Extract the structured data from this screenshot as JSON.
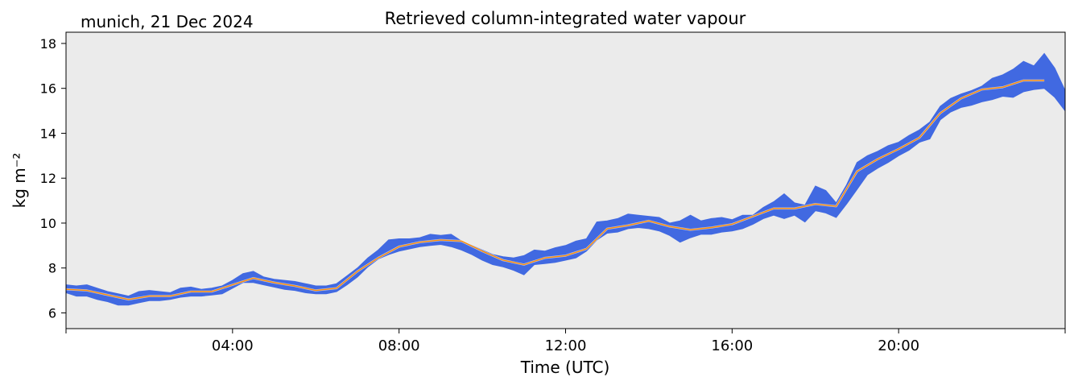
{
  "chart_data": {
    "type": "line",
    "title": "Retrieved column-integrated water vapour",
    "subtitle": "munich, 21 Dec 2024",
    "xlabel": "Time (UTC)",
    "ylabel": "kg m⁻²",
    "xlim": [
      "00:00",
      "24:00"
    ],
    "ylim": [
      5.3,
      18.5
    ],
    "x_ticks": [
      "04:00",
      "08:00",
      "12:00",
      "16:00",
      "20:00"
    ],
    "y_ticks": [
      "6",
      "8",
      "10",
      "12",
      "14",
      "16",
      "18"
    ],
    "grid": false,
    "legend": "none",
    "colors": {
      "raw": "#4169e1",
      "smoothed": "#ff8c00",
      "plot_bg": "#ebebeb"
    },
    "series": [
      {
        "style": "raw band",
        "x_hours": [
          0.0,
          0.25,
          0.5,
          0.75,
          1.0,
          1.25,
          1.5,
          1.75,
          2.0,
          2.25,
          2.5,
          2.75,
          3.0,
          3.25,
          3.5,
          3.75,
          4.0,
          4.25,
          4.5,
          4.75,
          5.0,
          5.25,
          5.5,
          5.75,
          6.0,
          6.25,
          6.5,
          6.75,
          7.0,
          7.25,
          7.5,
          7.75,
          8.0,
          8.25,
          8.5,
          8.75,
          9.0,
          9.25,
          9.5,
          9.75,
          10.0,
          10.25,
          10.5,
          10.75,
          11.0,
          11.25,
          11.5,
          11.75,
          12.0,
          12.25,
          12.5,
          12.75,
          13.0,
          13.25,
          13.5,
          13.75,
          14.0,
          14.25,
          14.5,
          14.75,
          15.0,
          15.25,
          15.5,
          15.75,
          16.0,
          16.25,
          16.5,
          16.75,
          17.0,
          17.25,
          17.5,
          17.75,
          18.0,
          18.25,
          18.5,
          18.75,
          19.0,
          19.25,
          19.5,
          19.75,
          20.0,
          20.25,
          20.5,
          20.75,
          21.0,
          21.25,
          21.5,
          21.75,
          22.0,
          22.25,
          22.5,
          22.75,
          23.0,
          23.25,
          23.5,
          23.75,
          24.0
        ],
        "upper": [
          7.25,
          7.2,
          7.25,
          7.1,
          6.95,
          6.85,
          6.75,
          6.95,
          7.0,
          6.95,
          6.9,
          7.1,
          7.15,
          7.05,
          7.1,
          7.2,
          7.45,
          7.75,
          7.85,
          7.6,
          7.5,
          7.45,
          7.4,
          7.3,
          7.2,
          7.2,
          7.3,
          7.65,
          8.0,
          8.45,
          8.8,
          9.25,
          9.3,
          9.3,
          9.35,
          9.5,
          9.45,
          9.5,
          9.2,
          9.0,
          8.8,
          8.6,
          8.5,
          8.45,
          8.55,
          8.8,
          8.75,
          8.9,
          9.0,
          9.2,
          9.3,
          10.05,
          10.1,
          10.2,
          10.4,
          10.35,
          10.3,
          10.25,
          10.0,
          10.1,
          10.35,
          10.1,
          10.2,
          10.25,
          10.15,
          10.35,
          10.35,
          10.7,
          10.95,
          11.3,
          10.9,
          10.8,
          11.65,
          11.45,
          10.9,
          11.7,
          12.7,
          13.0,
          13.2,
          13.45,
          13.6,
          13.9,
          14.15,
          14.5,
          15.2,
          15.55,
          15.75,
          15.9,
          16.1,
          16.45,
          16.6,
          16.85,
          17.2,
          17.0,
          17.55,
          16.9,
          15.9
        ],
        "lower": [
          6.9,
          6.75,
          6.75,
          6.6,
          6.5,
          6.35,
          6.35,
          6.45,
          6.55,
          6.55,
          6.6,
          6.7,
          6.75,
          6.75,
          6.8,
          6.85,
          7.1,
          7.35,
          7.35,
          7.25,
          7.15,
          7.05,
          7.0,
          6.9,
          6.85,
          6.85,
          6.95,
          7.25,
          7.6,
          8.05,
          8.4,
          8.6,
          8.75,
          8.85,
          8.95,
          9.0,
          9.05,
          8.95,
          8.8,
          8.6,
          8.35,
          8.15,
          8.05,
          7.9,
          7.7,
          8.15,
          8.2,
          8.25,
          8.35,
          8.45,
          8.75,
          9.25,
          9.55,
          9.6,
          9.75,
          9.8,
          9.75,
          9.65,
          9.45,
          9.15,
          9.35,
          9.5,
          9.5,
          9.6,
          9.65,
          9.75,
          9.95,
          10.2,
          10.35,
          10.2,
          10.35,
          10.05,
          10.55,
          10.45,
          10.25,
          10.85,
          11.5,
          12.15,
          12.45,
          12.7,
          13.0,
          13.25,
          13.6,
          13.75,
          14.6,
          14.95,
          15.15,
          15.25,
          15.4,
          15.5,
          15.65,
          15.6,
          15.85,
          15.95,
          16.0,
          15.6,
          15.0
        ]
      },
      {
        "style": "smoothed line",
        "x_hours": [
          0.0,
          0.5,
          1.0,
          1.5,
          2.0,
          2.5,
          3.0,
          3.5,
          4.0,
          4.5,
          5.0,
          5.5,
          6.0,
          6.5,
          7.0,
          7.5,
          8.0,
          8.5,
          9.0,
          9.5,
          10.0,
          10.5,
          11.0,
          11.5,
          12.0,
          12.5,
          13.0,
          13.5,
          14.0,
          14.5,
          15.0,
          15.5,
          16.0,
          16.5,
          17.0,
          17.5,
          18.0,
          18.5,
          19.0,
          19.5,
          20.0,
          20.5,
          21.0,
          21.5,
          22.0,
          22.5,
          23.0,
          23.5
        ],
        "values": [
          7.05,
          7.0,
          6.8,
          6.6,
          6.75,
          6.75,
          6.95,
          6.95,
          7.25,
          7.55,
          7.35,
          7.2,
          7.0,
          7.1,
          7.85,
          8.45,
          8.95,
          9.15,
          9.25,
          9.2,
          8.75,
          8.35,
          8.15,
          8.45,
          8.55,
          8.85,
          9.75,
          9.9,
          10.1,
          9.85,
          9.7,
          9.8,
          9.95,
          10.3,
          10.65,
          10.65,
          10.85,
          10.75,
          12.3,
          12.85,
          13.3,
          13.8,
          14.9,
          15.55,
          15.95,
          16.05,
          16.35,
          16.35
        ]
      }
    ]
  }
}
